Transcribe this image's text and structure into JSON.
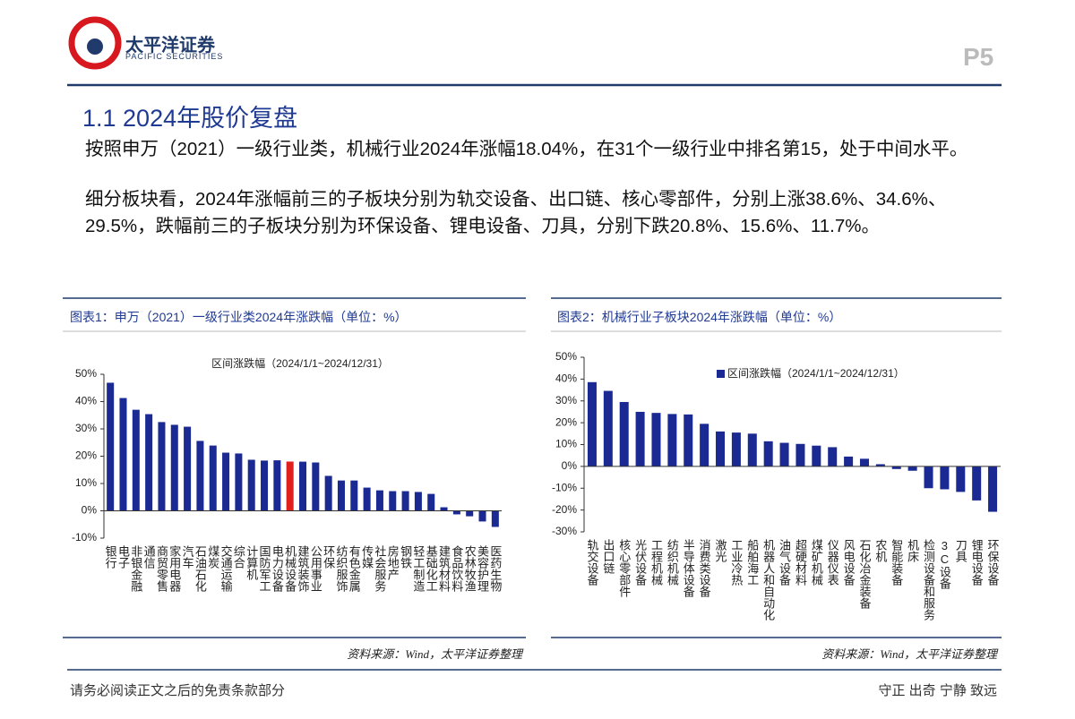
{
  "header": {
    "logo_cn": "太平洋证券",
    "logo_en": "PACIFIC SECURITIES",
    "page": "P5"
  },
  "section_title": "1.1 2024年股价复盘",
  "paragraphs": [
    "按照申万（2021）一级行业类，机械行业2024年涨幅18.04%，在31个一级行业中排名第15，处于中间水平。",
    "细分板块看，2024年涨幅前三的子板块分别为轨交设备、出口链、核心零部件，分别上涨38.6%、34.6%、29.5%，跌幅前三的子板块分别为环保设备、锂电设备、刀具，分别下跌20.8%、15.6%、11.7%。"
  ],
  "figures": [
    {
      "caption": "图表1：申万（2021）一级行业类2024年涨跌幅（单位：%）",
      "source": "资料来源：Wind，太平洋证券整理"
    },
    {
      "caption": "图表2：机械行业子板块2024年涨跌幅（单位：%）",
      "source": "资料来源：Wind，太平洋证券整理"
    }
  ],
  "chart_data": [
    {
      "type": "bar",
      "title": "区间涨跌幅（2024/1/1~2024/12/31）",
      "categories": [
        "银行",
        "电子",
        "非银金融",
        "通信",
        "商贸零售",
        "家用电器",
        "汽车",
        "石油石化",
        "煤炭",
        "交通运输",
        "综合",
        "计算机",
        "国防军工",
        "电力设备",
        "机械设备",
        "建筑装饰",
        "公用事业",
        "环保",
        "纺织服饰",
        "有色金属",
        "传媒",
        "社会服务",
        "房地产",
        "钢铁",
        "轻工制造",
        "基础化工",
        "建筑材料",
        "食品饮料",
        "农林牧渔",
        "美容护理",
        "医药生物"
      ],
      "values": [
        46.9,
        41.3,
        37,
        35.4,
        32.5,
        31.5,
        30.8,
        25.6,
        23.9,
        21.3,
        21,
        18.7,
        18.4,
        18.5,
        18.04,
        18,
        17.7,
        12.8,
        11.1,
        11.1,
        8.5,
        7.5,
        7.2,
        7.2,
        6.9,
        6.2,
        1.3,
        -1.3,
        -2,
        -3.9,
        -5.9
      ],
      "colors": [
        "#1b2a93",
        "#1b2a93",
        "#1b2a93",
        "#1b2a93",
        "#1b2a93",
        "#1b2a93",
        "#1b2a93",
        "#1b2a93",
        "#1b2a93",
        "#1b2a93",
        "#1b2a93",
        "#1b2a93",
        "#1b2a93",
        "#1b2a93",
        "#e0201c",
        "#1b2a93",
        "#1b2a93",
        "#1b2a93",
        "#1b2a93",
        "#1b2a93",
        "#1b2a93",
        "#1b2a93",
        "#1b2a93",
        "#1b2a93",
        "#1b2a93",
        "#1b2a93",
        "#1b2a93",
        "#1b2a93",
        "#1b2a93",
        "#1b2a93",
        "#1b2a93"
      ],
      "ylim": [
        -10,
        50
      ],
      "yticks": [
        {
          "value": 50,
          "label": "50%"
        },
        {
          "value": 40,
          "label": "40%"
        },
        {
          "value": 30,
          "label": "30%"
        },
        {
          "value": 20,
          "label": "20%"
        },
        {
          "value": 10,
          "label": "10%"
        },
        {
          "value": 0,
          "label": "0%"
        },
        {
          "value": -10,
          "label": "-10%"
        }
      ],
      "grid": false
    },
    {
      "type": "bar",
      "legend": "top",
      "categories": [
        "轨交设备",
        "出口链",
        "核心零部件",
        "光伏设备",
        "工程机械",
        "纺织机械",
        "半导体设备",
        "消费类设备",
        "激光",
        "工业冷热",
        "船舶海工",
        "机器人和自动化",
        "油气设备",
        "超硬材料",
        "煤矿机械",
        "仪器仪表",
        "风电设备",
        "石化冶金装备",
        "农机",
        "智能装备",
        "机床",
        "检测设备和服务",
        "3C设备",
        "刀具",
        "锂电设备",
        "环保设备"
      ],
      "series": [
        {
          "name": "区间涨跌幅（2024/1/1~2024/12/31）",
          "color": "#1b2a93",
          "values": [
            38.6,
            34.6,
            29.5,
            25,
            24.5,
            24,
            23.8,
            19.5,
            16,
            15.5,
            15,
            11.5,
            10.8,
            10.3,
            9.5,
            8.8,
            4.5,
            3.5,
            1,
            -1.2,
            -2,
            -10,
            -10.5,
            -11.7,
            -15.6,
            -20.8
          ]
        }
      ],
      "ylim": [
        -30,
        50
      ],
      "yticks": [
        {
          "value": 50,
          "label": "50%"
        },
        {
          "value": 40,
          "label": "40%"
        },
        {
          "value": 30,
          "label": "30%"
        },
        {
          "value": 20,
          "label": "20%"
        },
        {
          "value": 10,
          "label": "10%"
        },
        {
          "value": 0,
          "label": "0%"
        },
        {
          "value": -10,
          "label": "-10%"
        },
        {
          "value": -20,
          "label": "-20%"
        },
        {
          "value": -30,
          "label": "-30%"
        }
      ],
      "grid": false
    }
  ],
  "footer": {
    "left": "请务必阅读正文之后的免责条款部分",
    "right": "守正 出奇 宁静 致远"
  }
}
